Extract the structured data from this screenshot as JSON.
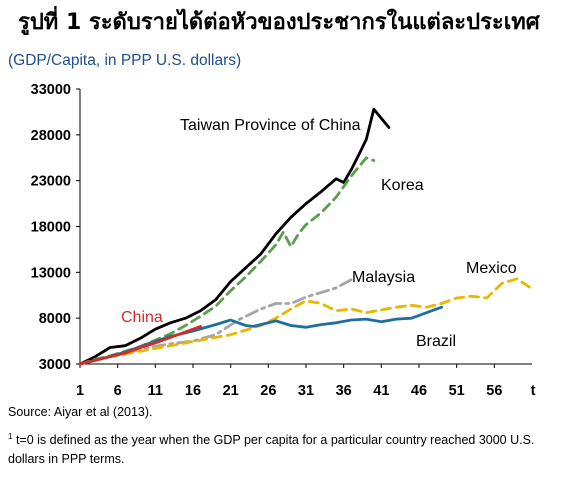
{
  "title": "รูปที่ 1 ระดับรายได้ต่อหัวของประชากรในแต่ละประเทศ",
  "chart_data": {
    "type": "line",
    "subtitle": "(GDP/Capita, in PPP U.S. dollars)",
    "xlabel": "t",
    "xlim": [
      1,
      61
    ],
    "ylim": [
      3000,
      33000
    ],
    "x_ticks": [
      1,
      6,
      11,
      16,
      21,
      26,
      31,
      36,
      41,
      46,
      51,
      56
    ],
    "y_ticks": [
      3000,
      8000,
      13000,
      18000,
      23000,
      28000,
      33000
    ],
    "x_tick_labels": [
      "1",
      "6",
      "11",
      "16",
      "21",
      "26",
      "31",
      "36",
      "41",
      "46",
      "51",
      "56"
    ],
    "y_tick_labels": [
      "3000",
      "8000",
      "13000",
      "18000",
      "23000",
      "28000",
      "33000"
    ],
    "grid": false,
    "legend": "inline labels",
    "series": [
      {
        "name": "Taiwan Province of China",
        "color": "#000000",
        "style": "solid",
        "x": [
          1,
          3,
          5,
          7,
          9,
          11,
          13,
          15,
          17,
          19,
          21,
          23,
          25,
          27,
          29,
          31,
          33,
          35,
          36,
          37,
          38,
          39,
          40,
          41,
          42
        ],
        "y": [
          3000,
          3800,
          4800,
          5000,
          5800,
          6800,
          7500,
          8000,
          8800,
          10000,
          12000,
          13500,
          15000,
          17200,
          19000,
          20500,
          21800,
          23200,
          22800,
          24200,
          25800,
          27500,
          30800,
          29800,
          28800
        ]
      },
      {
        "name": "Korea",
        "color": "#5a9e4e",
        "style": "dashed",
        "x": [
          1,
          3,
          5,
          7,
          9,
          11,
          13,
          15,
          17,
          19,
          21,
          23,
          25,
          27,
          28,
          29,
          30,
          31,
          33,
          35,
          37,
          39,
          40
        ],
        "y": [
          3000,
          3500,
          3900,
          4400,
          4900,
          5600,
          6300,
          7200,
          8200,
          9300,
          11000,
          12500,
          14200,
          16000,
          17400,
          15800,
          17200,
          18200,
          19500,
          21200,
          23500,
          25500,
          25200
        ]
      },
      {
        "name": "Malaysia",
        "color": "#a5a5a5",
        "style": "dashdot",
        "x": [
          1,
          4,
          7,
          10,
          13,
          16,
          19,
          22,
          25,
          27,
          29,
          31,
          33,
          35,
          37
        ],
        "y": [
          3000,
          3600,
          4200,
          4800,
          5200,
          5500,
          6200,
          7800,
          9000,
          9600,
          9600,
          10300,
          10800,
          11300,
          12200
        ]
      },
      {
        "name": "Mexico",
        "color": "#e6b800",
        "style": "dashed",
        "x": [
          1,
          5,
          9,
          13,
          17,
          21,
          25,
          27,
          29,
          31,
          33,
          35,
          37,
          39,
          41,
          43,
          45,
          47,
          49,
          51,
          53,
          55,
          57,
          59,
          61
        ],
        "y": [
          3000,
          3800,
          4400,
          5000,
          5600,
          6200,
          7200,
          8000,
          9000,
          9900,
          9600,
          8800,
          9000,
          8600,
          8900,
          9200,
          9400,
          9200,
          9600,
          10200,
          10400,
          10200,
          11800,
          12300,
          11200
        ]
      },
      {
        "name": "Brazil",
        "color": "#1f6f9e",
        "style": "solid",
        "x": [
          1,
          4,
          7,
          10,
          13,
          16,
          19,
          21,
          22,
          23,
          24,
          25,
          27,
          29,
          31,
          33,
          35,
          37,
          39,
          41,
          43,
          45,
          47,
          49
        ],
        "y": [
          3000,
          3600,
          4300,
          5200,
          6000,
          6600,
          7300,
          7800,
          7500,
          7200,
          7100,
          7300,
          7700,
          7200,
          7000,
          7300,
          7500,
          7800,
          7900,
          7600,
          7900,
          8000,
          8600,
          9200
        ]
      },
      {
        "name": "China",
        "color": "#d42b2b",
        "style": "solid",
        "x": [
          1,
          3,
          5,
          7,
          9,
          11,
          13,
          15,
          17
        ],
        "y": [
          3000,
          3400,
          3800,
          4200,
          4800,
          5300,
          5900,
          6500,
          7100
        ]
      }
    ]
  },
  "footer": {
    "source": "Source: Aiyar et al (2013).",
    "note_mark": "1",
    "note": "t=0 is defined as the year when the GDP per capita for a particular country reached 3000 U.S. dollars in PPP terms."
  }
}
